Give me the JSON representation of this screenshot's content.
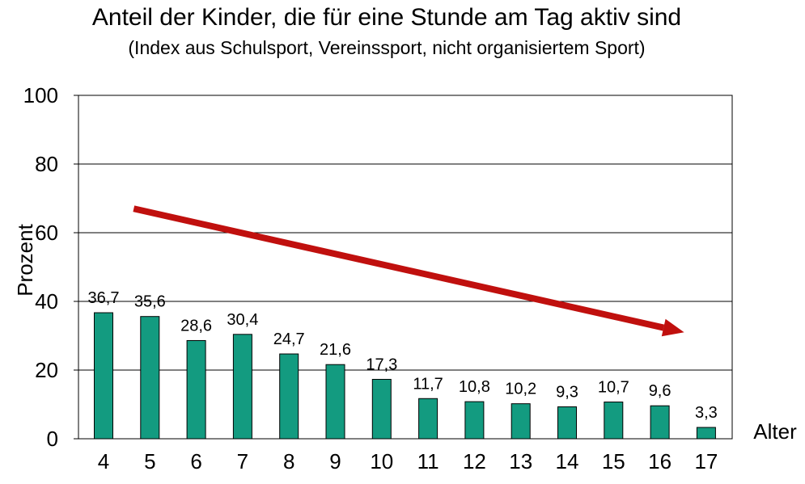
{
  "chart_data": {
    "type": "bar",
    "title": "Anteil der Kinder, die für eine Stunde am Tag aktiv sind",
    "subtitle": "(Index aus Schulsport, Vereinssport, nicht organisiertem Sport)",
    "ylabel": "Prozent",
    "xlabel": "Alter",
    "ylim": [
      0,
      100
    ],
    "yticks": [
      0,
      20,
      40,
      60,
      80,
      100
    ],
    "grid": true,
    "categories": [
      "4",
      "5",
      "6",
      "7",
      "8",
      "9",
      "10",
      "11",
      "12",
      "13",
      "14",
      "15",
      "16",
      "17"
    ],
    "values": [
      36.7,
      35.6,
      28.6,
      30.4,
      24.7,
      21.6,
      17.3,
      11.7,
      10.8,
      10.2,
      9.3,
      10.7,
      9.6,
      3.3
    ],
    "data_labels": [
      "36,7",
      "35,6",
      "28,6",
      "30,4",
      "24,7",
      "21,6",
      "17,3",
      "11,7",
      "10,8",
      "10,2",
      "9,3",
      "10,7",
      "9,6",
      "3,3"
    ],
    "trend_arrow": {
      "from": {
        "x": "5",
        "y": 67
      },
      "to": {
        "x": "16",
        "y": 31
      }
    },
    "colors": {
      "bar": "#139b80",
      "bar_stroke": "#000000",
      "arrow": "#c0100e",
      "grid": "#000000"
    }
  }
}
